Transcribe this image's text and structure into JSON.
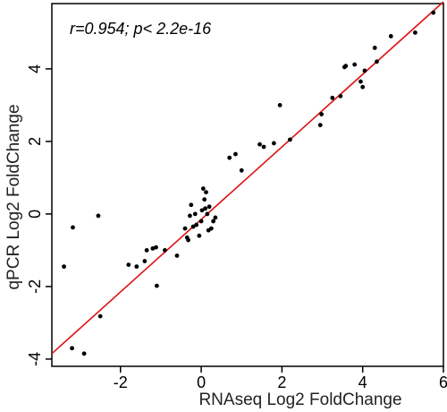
{
  "chart_data": {
    "type": "scatter",
    "title": "",
    "xlabel": "RNAseq Log2 FoldChange",
    "ylabel": "qPCR Log2 FoldChange",
    "xlim": [
      -3.7,
      6.0
    ],
    "ylim": [
      -4.2,
      5.8
    ],
    "x_ticks": [
      -2,
      0,
      2,
      4,
      6
    ],
    "y_ticks": [
      -4,
      -2,
      0,
      2,
      4
    ],
    "x_tick_labels": [
      "-2",
      "0",
      "2",
      "4",
      "6"
    ],
    "y_tick_labels": [
      "-4",
      "-2",
      "0",
      "2",
      "4"
    ],
    "grid": false,
    "annotation": "r=0.954; p< 2.2e-16",
    "point_color": "#000000",
    "fit_line_color": "#dd1111",
    "fit_line": {
      "x": [
        -3.7,
        6.0
      ],
      "y": [
        -3.85,
        5.85
      ]
    },
    "series": [
      {
        "values": [
          {
            "x": -3.4,
            "y": -1.45
          },
          {
            "x": -3.18,
            "y": -0.37
          },
          {
            "x": -3.2,
            "y": -3.7
          },
          {
            "x": -2.9,
            "y": -3.85
          },
          {
            "x": -2.55,
            "y": -0.05
          },
          {
            "x": -2.5,
            "y": -2.82
          },
          {
            "x": -1.8,
            "y": -1.4
          },
          {
            "x": -1.6,
            "y": -1.45
          },
          {
            "x": -1.4,
            "y": -1.3
          },
          {
            "x": -1.35,
            "y": -1.0
          },
          {
            "x": -1.2,
            "y": -0.95
          },
          {
            "x": -1.12,
            "y": -0.92
          },
          {
            "x": -1.1,
            "y": -1.98
          },
          {
            "x": -0.9,
            "y": -1.0
          },
          {
            "x": -0.6,
            "y": -1.15
          },
          {
            "x": -0.4,
            "y": -0.4
          },
          {
            "x": -0.35,
            "y": -0.65
          },
          {
            "x": -0.32,
            "y": -0.72
          },
          {
            "x": -0.28,
            "y": -0.05
          },
          {
            "x": -0.25,
            "y": 0.25
          },
          {
            "x": -0.2,
            "y": -0.35
          },
          {
            "x": -0.15,
            "y": 0.0
          },
          {
            "x": -0.12,
            "y": -0.3
          },
          {
            "x": -0.05,
            "y": -0.6
          },
          {
            "x": 0.0,
            "y": -0.2
          },
          {
            "x": 0.02,
            "y": 0.1
          },
          {
            "x": 0.05,
            "y": 0.7
          },
          {
            "x": 0.08,
            "y": 0.4
          },
          {
            "x": 0.1,
            "y": 0.15
          },
          {
            "x": 0.12,
            "y": 0.6
          },
          {
            "x": 0.15,
            "y": 0.0
          },
          {
            "x": 0.18,
            "y": -0.45
          },
          {
            "x": 0.2,
            "y": 0.2
          },
          {
            "x": 0.25,
            "y": -0.4
          },
          {
            "x": 0.3,
            "y": -0.2
          },
          {
            "x": 0.35,
            "y": -0.1
          },
          {
            "x": 0.7,
            "y": 1.55
          },
          {
            "x": 0.85,
            "y": 1.65
          },
          {
            "x": 1.0,
            "y": 1.2
          },
          {
            "x": 1.45,
            "y": 1.92
          },
          {
            "x": 1.55,
            "y": 1.85
          },
          {
            "x": 1.8,
            "y": 1.95
          },
          {
            "x": 1.95,
            "y": 3.0
          },
          {
            "x": 2.2,
            "y": 2.05
          },
          {
            "x": 2.95,
            "y": 2.45
          },
          {
            "x": 2.98,
            "y": 2.75
          },
          {
            "x": 3.25,
            "y": 3.2
          },
          {
            "x": 3.45,
            "y": 3.25
          },
          {
            "x": 3.55,
            "y": 4.05
          },
          {
            "x": 3.58,
            "y": 4.08
          },
          {
            "x": 3.8,
            "y": 4.12
          },
          {
            "x": 3.95,
            "y": 3.65
          },
          {
            "x": 4.0,
            "y": 3.5
          },
          {
            "x": 4.05,
            "y": 3.95
          },
          {
            "x": 4.3,
            "y": 4.58
          },
          {
            "x": 4.35,
            "y": 4.2
          },
          {
            "x": 4.7,
            "y": 4.9
          },
          {
            "x": 5.3,
            "y": 5.0
          },
          {
            "x": 5.75,
            "y": 5.55
          }
        ]
      }
    ]
  }
}
